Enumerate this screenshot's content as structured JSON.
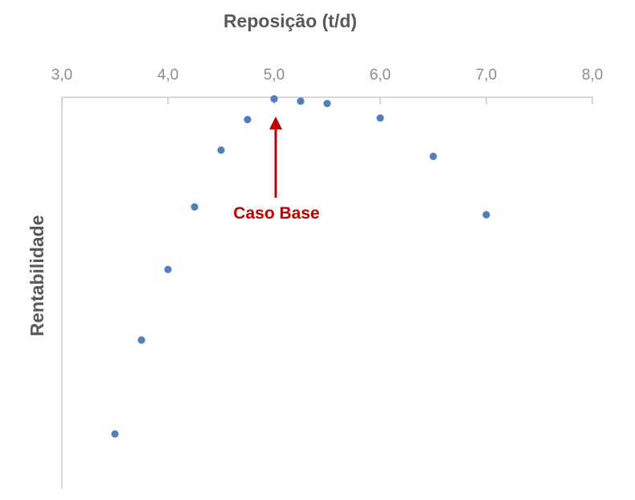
{
  "chart_data": {
    "type": "scatter",
    "title": "",
    "xlabel": "Reposição (t/d)",
    "ylabel": "Rentabilidade",
    "xlim": [
      3.0,
      8.0
    ],
    "ylim": [
      0,
      1
    ],
    "x_axis_position": "top",
    "x_ticks": [
      "3,0",
      "4,0",
      "5,0",
      "6,0",
      "7,0",
      "8,0"
    ],
    "y_ticks_shown": false,
    "grid": false,
    "legend": "none",
    "series": [
      {
        "color": "#4f7fbf",
        "points": [
          {
            "x": 3.5,
            "y": 0.14
          },
          {
            "x": 3.75,
            "y": 0.38
          },
          {
            "x": 4.0,
            "y": 0.56
          },
          {
            "x": 4.25,
            "y": 0.72
          },
          {
            "x": 4.5,
            "y": 0.865
          },
          {
            "x": 4.75,
            "y": 0.943
          },
          {
            "x": 5.0,
            "y": 0.996
          },
          {
            "x": 5.25,
            "y": 0.99
          },
          {
            "x": 5.5,
            "y": 0.984
          },
          {
            "x": 6.0,
            "y": 0.947
          },
          {
            "x": 6.5,
            "y": 0.849
          },
          {
            "x": 7.0,
            "y": 0.7
          }
        ]
      }
    ],
    "annotation": {
      "text": "Caso Base",
      "x": 5.0,
      "color": "#c00000"
    }
  }
}
